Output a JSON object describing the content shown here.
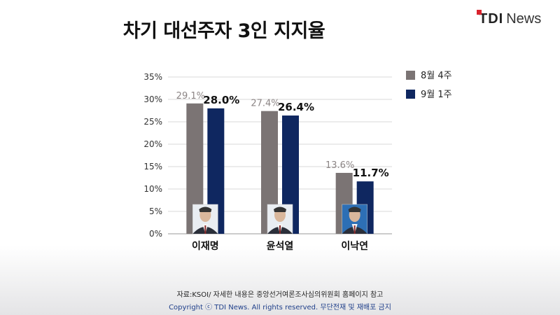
{
  "header": {
    "title": "차기 대선주자 3인 지지율",
    "logo_tdi": "TDI",
    "logo_news": "News"
  },
  "chart_data": {
    "type": "bar",
    "title": "차기 대선주자 3인 지지율",
    "categories": [
      "이재명",
      "윤석열",
      "이낙연"
    ],
    "series": [
      {
        "name": "8월 4주",
        "values": [
          29.1,
          27.4,
          13.6
        ],
        "labels": [
          "29.1%",
          "27.4%",
          "13.6%"
        ],
        "color": "#7b7474"
      },
      {
        "name": "9월 1주",
        "values": [
          28.0,
          26.4,
          11.7
        ],
        "labels": [
          "28.0%",
          "26.4%",
          "11.7%"
        ],
        "color": "#0f2760"
      }
    ],
    "yticks": [
      "0%",
      "5%",
      "10%",
      "15%",
      "20%",
      "25%",
      "30%",
      "35%"
    ],
    "ylim": [
      0,
      35
    ],
    "grid": true,
    "legend": "top-right",
    "photos": [
      "portrait-icon",
      "portrait-icon",
      "portrait-icon"
    ]
  },
  "footer": {
    "source": "자료:KSOI/ 자세한 내용은 중앙선거여론조사심의위원회 홈페이지 참고",
    "copyright": "Copyright ⓒ TDI News. All rights reserved. 무단전재 및 재배포 금지"
  }
}
